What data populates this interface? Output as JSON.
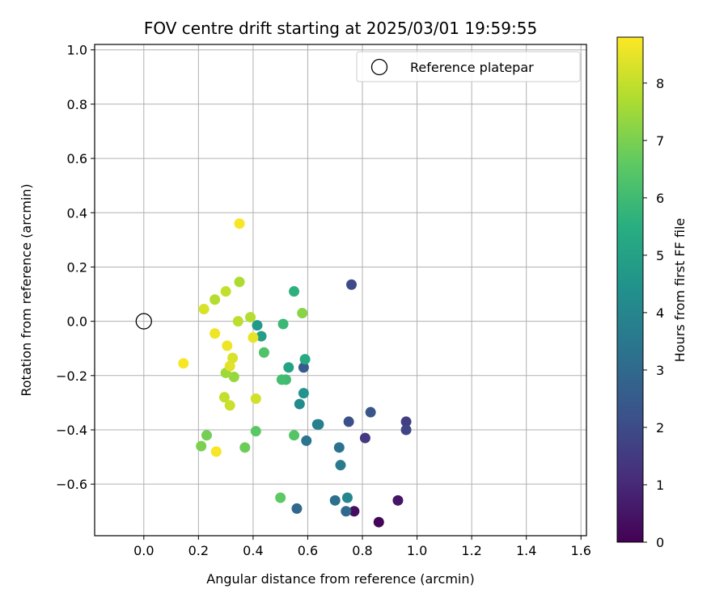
{
  "chart_data": {
    "type": "scatter",
    "title": "FOV centre drift starting at 2025/03/01 19:59:55",
    "xlabel": "Angular distance from reference (arcmin)",
    "ylabel": "Rotation from reference (arcmin)",
    "xlim": [
      -0.18,
      1.62
    ],
    "ylim": [
      -0.79,
      1.02
    ],
    "xticks": [
      "0.0",
      "0.2",
      "0.4",
      "0.6",
      "0.8",
      "1.0",
      "1.2",
      "1.4",
      "1.6"
    ],
    "xtick_values": [
      0,
      0.2,
      0.4,
      0.6,
      0.8,
      1.0,
      1.2,
      1.4,
      1.6
    ],
    "yticks": [
      "−0.6",
      "−0.4",
      "−0.2",
      "0.0",
      "0.2",
      "0.4",
      "0.6",
      "0.8",
      "1.0"
    ],
    "ytick_values": [
      -0.6,
      -0.4,
      -0.2,
      0,
      0.2,
      0.4,
      0.6,
      0.8,
      1.0
    ],
    "grid": true,
    "legend": {
      "label": "Reference platepar",
      "position": "top-right"
    },
    "reference_point": {
      "x": 0.0,
      "y": 0.0
    },
    "colorbar": {
      "label": "Hours from first FF file",
      "min": 0,
      "max": 8.8,
      "ticks": [
        "0",
        "1",
        "2",
        "3",
        "4",
        "5",
        "6",
        "7",
        "8"
      ],
      "tick_values": [
        0,
        1,
        2,
        3,
        4,
        5,
        6,
        7,
        8
      ],
      "colormap": "viridis"
    },
    "points": [
      {
        "x": 0.86,
        "y": -0.74,
        "hours": 0.1
      },
      {
        "x": 0.77,
        "y": -0.7,
        "hours": 0.3
      },
      {
        "x": 0.93,
        "y": -0.66,
        "hours": 0.5
      },
      {
        "x": 0.81,
        "y": -0.43,
        "hours": 1.5
      },
      {
        "x": 0.96,
        "y": -0.37,
        "hours": 1.6
      },
      {
        "x": 0.96,
        "y": -0.4,
        "hours": 1.8
      },
      {
        "x": 0.76,
        "y": 0.135,
        "hours": 2.0
      },
      {
        "x": 0.75,
        "y": -0.37,
        "hours": 2.1
      },
      {
        "x": 0.83,
        "y": -0.335,
        "hours": 2.3
      },
      {
        "x": 0.585,
        "y": -0.17,
        "hours": 2.5
      },
      {
        "x": 0.56,
        "y": -0.69,
        "hours": 2.9
      },
      {
        "x": 0.74,
        "y": -0.7,
        "hours": 3.0
      },
      {
        "x": 0.7,
        "y": -0.66,
        "hours": 3.2
      },
      {
        "x": 0.715,
        "y": -0.465,
        "hours": 3.3
      },
      {
        "x": 0.595,
        "y": -0.44,
        "hours": 3.4
      },
      {
        "x": 0.72,
        "y": -0.53,
        "hours": 3.6
      },
      {
        "x": 0.64,
        "y": -0.38,
        "hours": 3.7
      },
      {
        "x": 0.635,
        "y": -0.38,
        "hours": 3.8
      },
      {
        "x": 0.745,
        "y": -0.65,
        "hours": 4.0
      },
      {
        "x": 0.57,
        "y": -0.305,
        "hours": 4.2
      },
      {
        "x": 0.585,
        "y": -0.265,
        "hours": 4.5
      },
      {
        "x": 0.415,
        "y": -0.015,
        "hours": 4.7
      },
      {
        "x": 0.43,
        "y": -0.055,
        "hours": 4.9
      },
      {
        "x": 0.53,
        "y": -0.17,
        "hours": 5.1
      },
      {
        "x": 0.59,
        "y": -0.14,
        "hours": 5.3
      },
      {
        "x": 0.55,
        "y": 0.11,
        "hours": 5.6
      },
      {
        "x": 0.51,
        "y": -0.01,
        "hours": 5.9
      },
      {
        "x": 0.52,
        "y": -0.215,
        "hours": 6.0
      },
      {
        "x": 0.505,
        "y": -0.215,
        "hours": 6.1
      },
      {
        "x": 0.44,
        "y": -0.115,
        "hours": 6.3
      },
      {
        "x": 0.55,
        "y": -0.42,
        "hours": 6.4
      },
      {
        "x": 0.41,
        "y": -0.405,
        "hours": 6.5
      },
      {
        "x": 0.5,
        "y": -0.65,
        "hours": 6.6
      },
      {
        "x": 0.37,
        "y": -0.465,
        "hours": 6.8
      },
      {
        "x": 0.23,
        "y": -0.42,
        "hours": 6.9
      },
      {
        "x": 0.21,
        "y": -0.46,
        "hours": 7.0
      },
      {
        "x": 0.58,
        "y": 0.03,
        "hours": 7.2
      },
      {
        "x": 0.33,
        "y": -0.205,
        "hours": 7.4
      },
      {
        "x": 0.3,
        "y": -0.19,
        "hours": 7.5
      },
      {
        "x": 0.35,
        "y": 0.145,
        "hours": 7.7
      },
      {
        "x": 0.26,
        "y": 0.08,
        "hours": 7.8
      },
      {
        "x": 0.39,
        "y": 0.015,
        "hours": 7.8
      },
      {
        "x": 0.345,
        "y": 0.0,
        "hours": 7.9
      },
      {
        "x": 0.3,
        "y": 0.11,
        "hours": 8.0
      },
      {
        "x": 0.295,
        "y": -0.28,
        "hours": 8.0
      },
      {
        "x": 0.315,
        "y": -0.31,
        "hours": 8.1
      },
      {
        "x": 0.41,
        "y": -0.285,
        "hours": 8.2
      },
      {
        "x": 0.22,
        "y": 0.045,
        "hours": 8.3
      },
      {
        "x": 0.325,
        "y": -0.135,
        "hours": 8.3
      },
      {
        "x": 0.315,
        "y": -0.165,
        "hours": 8.4
      },
      {
        "x": 0.4,
        "y": -0.06,
        "hours": 8.5
      },
      {
        "x": 0.305,
        "y": -0.09,
        "hours": 8.6
      },
      {
        "x": 0.26,
        "y": -0.045,
        "hours": 8.6
      },
      {
        "x": 0.145,
        "y": -0.155,
        "hours": 8.7
      },
      {
        "x": 0.265,
        "y": -0.48,
        "hours": 8.7
      },
      {
        "x": 0.35,
        "y": 0.36,
        "hours": 8.7
      }
    ]
  }
}
